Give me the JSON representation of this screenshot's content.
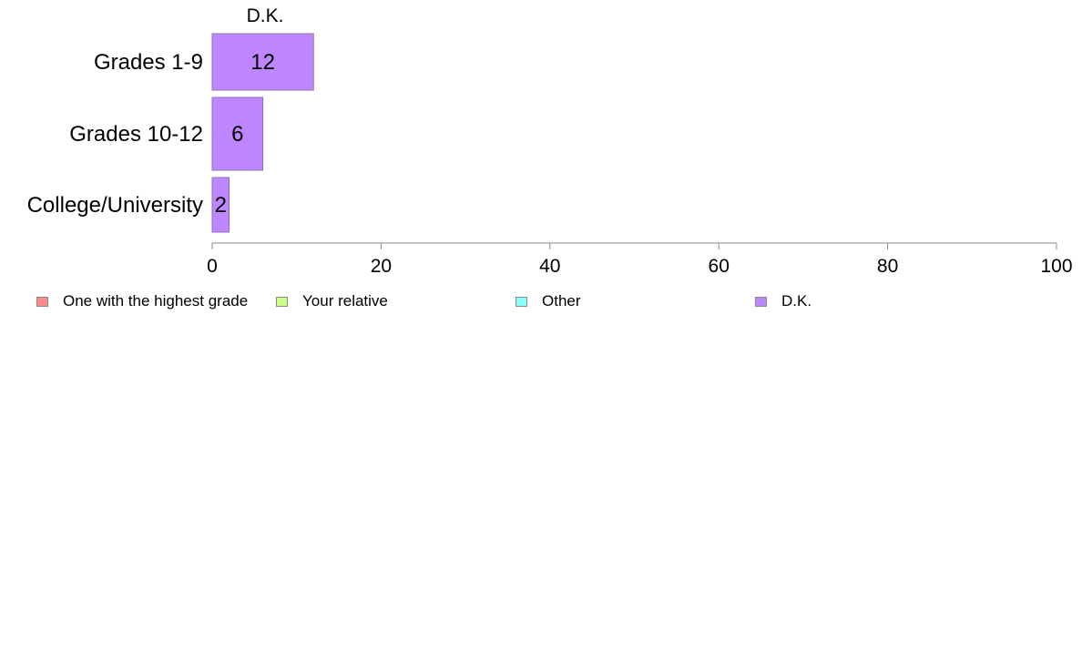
{
  "chart_data": {
    "type": "bar",
    "orientation": "horizontal",
    "title": "D.K.",
    "categories": [
      "Grades 1-9",
      "Grades 10-12",
      "College/University"
    ],
    "series": [
      {
        "name": "D.K.",
        "values": [
          12,
          6,
          2
        ],
        "color": "#BF87FF"
      }
    ],
    "data_labels": [
      "12",
      "6",
      "2"
    ],
    "xlim": [
      0,
      100
    ],
    "x_ticks": [
      0,
      20,
      40,
      60,
      80,
      100
    ],
    "x_tick_labels": [
      "0",
      "20",
      "40",
      "60",
      "80",
      "100"
    ],
    "grid": false,
    "legend_position": "bottom"
  },
  "legend": {
    "items": [
      {
        "label": "One with the highest grade",
        "color": "#FF8A8A"
      },
      {
        "label": "Your relative",
        "color": "#CCFF8A"
      },
      {
        "label": "Other",
        "color": "#8AFFFF"
      },
      {
        "label": "D.K.",
        "color": "#BF87FF"
      }
    ]
  }
}
